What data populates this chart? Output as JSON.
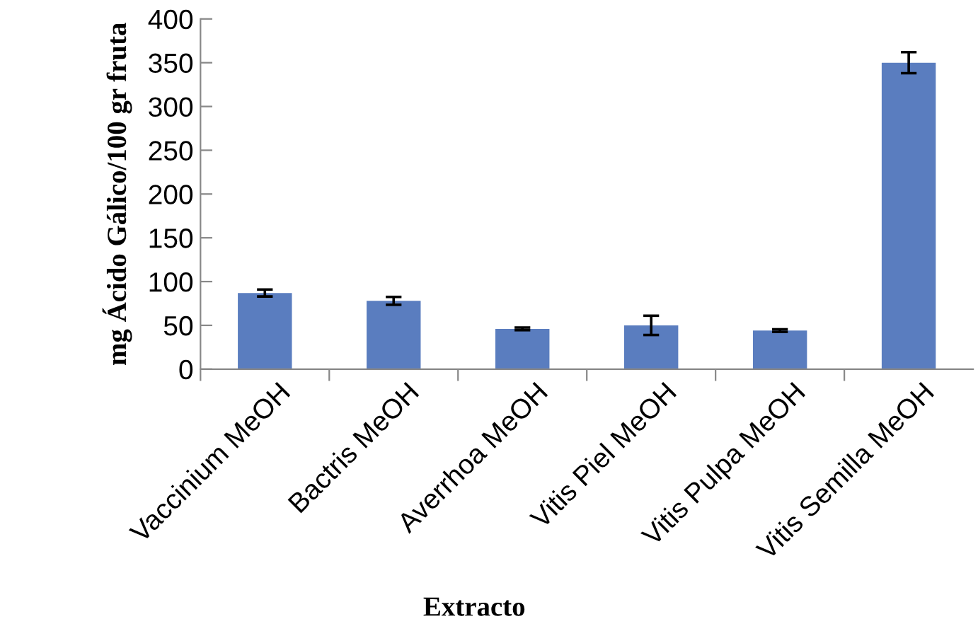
{
  "chart_data": {
    "type": "bar",
    "xlabel": "Extracto",
    "ylabel": "mg Ácido Gálico/100 gr fruta",
    "categories": [
      "Vaccinium MeOH",
      "Bactris MeOH",
      "Averrhoa MeOH",
      "Vitis Piel MeOH",
      "Vitis Pulpa MeOH",
      "Vitis Semilla MeOH"
    ],
    "values": [
      87,
      78,
      46,
      50,
      44,
      350
    ],
    "errors": [
      4,
      4.5,
      1.5,
      11,
      1.5,
      12
    ],
    "color": "#5a7dbf",
    "ylim": [
      0,
      400
    ],
    "yticks": [
      0,
      50,
      100,
      150,
      200,
      250,
      300,
      350,
      400
    ],
    "grid": false,
    "legend": false
  }
}
